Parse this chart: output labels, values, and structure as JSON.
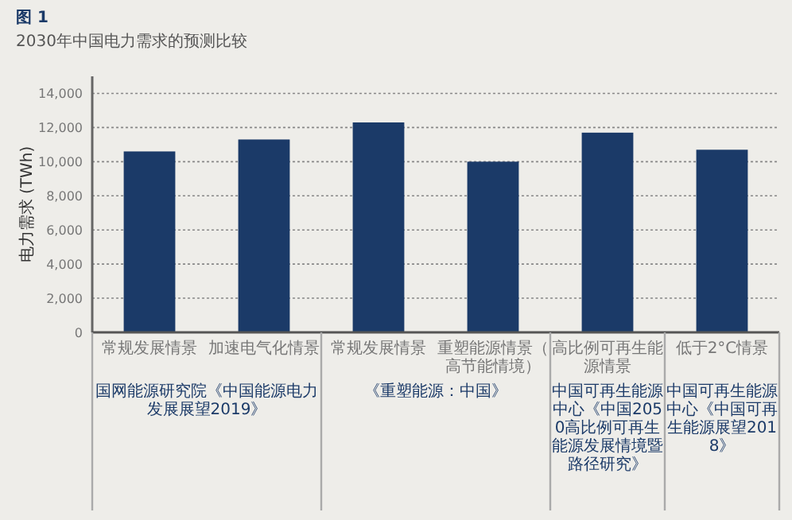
{
  "chart_data": {
    "type": "bar",
    "title": "图 1",
    "subtitle": "2030年中国电力需求的预测比较",
    "ylabel": "电力需求 (TWh)",
    "categories": [
      "常规发展情景",
      "加速电气化情景",
      "常规发展情景",
      "重塑能源情景（高节能情境）",
      "高比例可再生能源情景",
      "低于2°C情景"
    ],
    "values": [
      10600,
      11300,
      12300,
      10000,
      11700,
      10700
    ],
    "color": "#1b3a68",
    "ylim": [
      0,
      15000
    ],
    "yticks": [
      {
        "value": 0,
        "label": "0"
      },
      {
        "value": 2000,
        "label": "2,000"
      },
      {
        "value": 4000,
        "label": "4,000"
      },
      {
        "value": 6000,
        "label": "6,000"
      },
      {
        "value": 8000,
        "label": "8,000"
      },
      {
        "value": 10000,
        "label": "10,000"
      },
      {
        "value": 12000,
        "label": "12,000"
      },
      {
        "value": 14000,
        "label": "14,000"
      }
    ],
    "grid": "y",
    "annotations": [
      "国网能源研究院《中国能源电力发展展望2019》",
      "《重塑能源：中国》",
      "中国可再生能源中心《中国2050高比例可再生能源发展情境暨路径研究》",
      "中国可再生能源中心《中国可再生能源展望2018》"
    ]
  }
}
